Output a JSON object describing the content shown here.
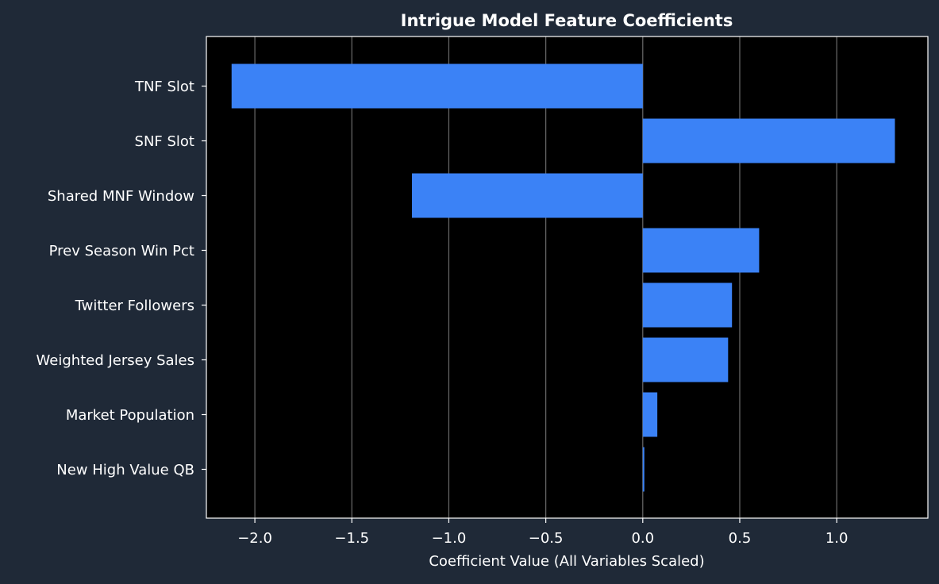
{
  "theme": {
    "background": "#1f2937",
    "plot_background": "#000000",
    "bar_color": "#3b82f6",
    "text_color": "#ffffff",
    "grid_color": "#6b6b6b"
  },
  "chart_data": {
    "type": "bar",
    "orientation": "horizontal",
    "title": "Intrigue Model Feature Coefficients",
    "xlabel": "Coefficient Value (All Variables Scaled)",
    "ylabel": "",
    "xlim": [
      -2.25,
      1.47
    ],
    "xticks": [
      -2.0,
      -1.5,
      -1.0,
      -0.5,
      0.0,
      0.5,
      1.0
    ],
    "xtick_labels": [
      "−2.0",
      "−1.5",
      "−1.0",
      "−0.5",
      "0.0",
      "0.5",
      "1.0"
    ],
    "grid": "vertical",
    "categories": [
      "TNF Slot",
      "SNF Slot",
      "Shared MNF Window",
      "Prev Season Win Pct",
      "Twitter Followers",
      "Weighted Jersey Sales",
      "Market Population",
      "New High Value QB"
    ],
    "values": [
      -2.12,
      1.3,
      -1.19,
      0.6,
      0.46,
      0.44,
      0.075,
      0.008
    ]
  }
}
